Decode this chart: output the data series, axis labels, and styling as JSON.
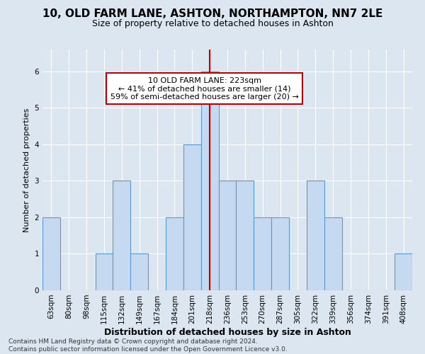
{
  "title": "10, OLD FARM LANE, ASHTON, NORTHAMPTON, NN7 2LE",
  "subtitle": "Size of property relative to detached houses in Ashton",
  "xlabel": "Distribution of detached houses by size in Ashton",
  "ylabel": "Number of detached properties",
  "categories": [
    "63sqm",
    "80sqm",
    "98sqm",
    "115sqm",
    "132sqm",
    "149sqm",
    "167sqm",
    "184sqm",
    "201sqm",
    "218sqm",
    "236sqm",
    "253sqm",
    "270sqm",
    "287sqm",
    "305sqm",
    "322sqm",
    "339sqm",
    "356sqm",
    "374sqm",
    "391sqm",
    "408sqm"
  ],
  "values": [
    2,
    0,
    0,
    1,
    3,
    1,
    0,
    2,
    4,
    6,
    3,
    3,
    2,
    2,
    0,
    3,
    2,
    0,
    0,
    0,
    1
  ],
  "bar_color": "#c5d9f0",
  "bar_edge_color": "#5b9bd5",
  "highlight_index": 9,
  "highlight_line_color": "#c00000",
  "annotation_text": "10 OLD FARM LANE: 223sqm\n← 41% of detached houses are smaller (14)\n59% of semi-detached houses are larger (20) →",
  "annotation_box_color": "#ffffff",
  "annotation_box_edge_color": "#c00000",
  "ylim": [
    0,
    6.6
  ],
  "yticks": [
    0,
    1,
    2,
    3,
    4,
    5,
    6
  ],
  "footer": "Contains HM Land Registry data © Crown copyright and database right 2024.\nContains public sector information licensed under the Open Government Licence v3.0.",
  "background_color": "#dce6f1",
  "plot_bg_color": "#dce6f1",
  "title_fontsize": 11,
  "subtitle_fontsize": 9,
  "xlabel_fontsize": 9,
  "ylabel_fontsize": 8,
  "tick_fontsize": 7.5,
  "annotation_fontsize": 8,
  "footer_fontsize": 6.5
}
